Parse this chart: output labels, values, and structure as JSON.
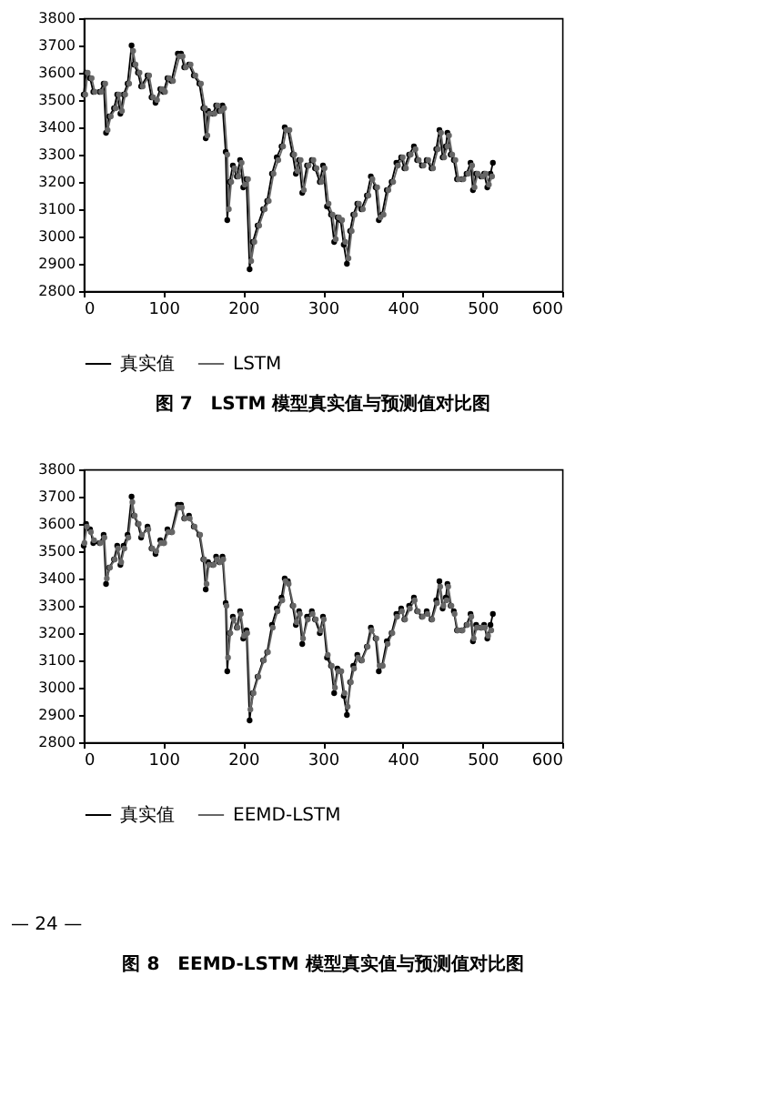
{
  "chart_data": [
    {
      "type": "line",
      "title": "图 7　LSTM 模型真实值与预测值对比图",
      "xlim": [
        0,
        600
      ],
      "ylim": [
        2800,
        3800
      ],
      "xticks": [
        0,
        100,
        200,
        300,
        400,
        500,
        600
      ],
      "yticks": [
        2800,
        2900,
        3000,
        3100,
        3200,
        3300,
        3400,
        3500,
        3600,
        3700,
        3800
      ],
      "grid": false,
      "legend": "bottom",
      "marker": "circle",
      "line_style": "solid",
      "series": [
        {
          "name": "真实值",
          "color": "#000000",
          "x": [
            0,
            3,
            8,
            12,
            20,
            25,
            28,
            32,
            38,
            42,
            46,
            50,
            55,
            60,
            63,
            68,
            72,
            80,
            85,
            90,
            96,
            100,
            105,
            110,
            118,
            122,
            126,
            132,
            138,
            145,
            150,
            153,
            156,
            162,
            166,
            170,
            174,
            178,
            180,
            183,
            187,
            192,
            196,
            200,
            204,
            208,
            212,
            218,
            225,
            230,
            236,
            242,
            248,
            252,
            256,
            262,
            266,
            270,
            274,
            280,
            286,
            290,
            296,
            300,
            305,
            310,
            314,
            318,
            322,
            326,
            330,
            334,
            338,
            343,
            348,
            355,
            360,
            366,
            370,
            374,
            380,
            386,
            392,
            398,
            402,
            408,
            414,
            418,
            424,
            430,
            436,
            442,
            446,
            450,
            454,
            456,
            460,
            464,
            468,
            474,
            480,
            485,
            488,
            492,
            498,
            502,
            506,
            510,
            513
          ],
          "values": [
            3520,
            3600,
            3580,
            3530,
            3530,
            3560,
            3380,
            3440,
            3470,
            3520,
            3450,
            3520,
            3560,
            3700,
            3630,
            3600,
            3550,
            3590,
            3510,
            3490,
            3540,
            3530,
            3580,
            3570,
            3670,
            3670,
            3620,
            3630,
            3590,
            3560,
            3470,
            3360,
            3460,
            3450,
            3480,
            3460,
            3480,
            3310,
            3060,
            3200,
            3260,
            3220,
            3280,
            3180,
            3210,
            2880,
            2980,
            3040,
            3100,
            3130,
            3230,
            3290,
            3330,
            3400,
            3390,
            3300,
            3230,
            3280,
            3160,
            3260,
            3280,
            3250,
            3200,
            3260,
            3110,
            3080,
            2980,
            3070,
            3060,
            2970,
            2900,
            3020,
            3080,
            3120,
            3100,
            3150,
            3220,
            3180,
            3060,
            3080,
            3170,
            3200,
            3270,
            3290,
            3250,
            3300,
            3330,
            3280,
            3260,
            3280,
            3250,
            3320,
            3390,
            3290,
            3330,
            3380,
            3300,
            3280,
            3210,
            3210,
            3230,
            3270,
            3170,
            3230,
            3220,
            3230,
            3180,
            3230,
            3270
          ]
        },
        {
          "name": "LSTM",
          "color": "#666666",
          "x": [
            2,
            5,
            10,
            14,
            22,
            27,
            30,
            34,
            40,
            44,
            48,
            52,
            57,
            62,
            65,
            70,
            74,
            82,
            87,
            92,
            98,
            102,
            107,
            112,
            120,
            124,
            128,
            134,
            140,
            147,
            152,
            155,
            158,
            164,
            168,
            172,
            176,
            180,
            182,
            185,
            189,
            194,
            198,
            202,
            206,
            210,
            214,
            220,
            227,
            232,
            238,
            244,
            250,
            254,
            258,
            264,
            268,
            272,
            276,
            282,
            288,
            292,
            298,
            302,
            307,
            312,
            316,
            320,
            324,
            328,
            332,
            336,
            340,
            345,
            350,
            357,
            362,
            368,
            372,
            376,
            382,
            388,
            394,
            400,
            404,
            410,
            416,
            420,
            426,
            432,
            438,
            444,
            448,
            452,
            456,
            458,
            462,
            466,
            470,
            476,
            482,
            487,
            490,
            494,
            500,
            504,
            508,
            512
          ],
          "values": [
            3520,
            3600,
            3580,
            3530,
            3530,
            3560,
            3390,
            3440,
            3470,
            3520,
            3460,
            3520,
            3560,
            3680,
            3630,
            3600,
            3550,
            3590,
            3510,
            3500,
            3540,
            3530,
            3580,
            3570,
            3660,
            3660,
            3620,
            3630,
            3590,
            3560,
            3470,
            3370,
            3450,
            3450,
            3480,
            3460,
            3470,
            3300,
            3100,
            3200,
            3250,
            3220,
            3270,
            3190,
            3210,
            2910,
            2980,
            3040,
            3100,
            3130,
            3230,
            3280,
            3330,
            3390,
            3390,
            3300,
            3240,
            3280,
            3170,
            3260,
            3280,
            3250,
            3200,
            3250,
            3120,
            3080,
            2990,
            3070,
            3060,
            2980,
            2920,
            3020,
            3080,
            3120,
            3100,
            3150,
            3210,
            3180,
            3070,
            3080,
            3170,
            3200,
            3260,
            3290,
            3250,
            3300,
            3320,
            3280,
            3260,
            3280,
            3250,
            3320,
            3380,
            3290,
            3330,
            3370,
            3300,
            3280,
            3210,
            3210,
            3230,
            3260,
            3180,
            3230,
            3220,
            3230,
            3190,
            3220
          ]
        }
      ]
    },
    {
      "type": "line",
      "title": "图 8　EEMD-LSTM 模型真实值与预测值对比图",
      "annotations": [
        "— 24 —"
      ],
      "xlim": [
        0,
        600
      ],
      "ylim": [
        2800,
        3800
      ],
      "xticks": [
        0,
        100,
        200,
        300,
        400,
        500,
        600
      ],
      "yticks": [
        2800,
        2900,
        3000,
        3100,
        3200,
        3300,
        3400,
        3500,
        3600,
        3700,
        3800
      ],
      "grid": false,
      "legend": "bottom",
      "marker": "circle",
      "line_style": "solid",
      "series": [
        {
          "name": "真实值",
          "color": "#000000",
          "x": [
            0,
            3,
            8,
            12,
            20,
            25,
            28,
            32,
            38,
            42,
            46,
            50,
            55,
            60,
            63,
            68,
            72,
            80,
            85,
            90,
            96,
            100,
            105,
            110,
            118,
            122,
            126,
            132,
            138,
            145,
            150,
            153,
            156,
            162,
            166,
            170,
            174,
            178,
            180,
            183,
            187,
            192,
            196,
            200,
            204,
            208,
            212,
            218,
            225,
            230,
            236,
            242,
            248,
            252,
            256,
            262,
            266,
            270,
            274,
            280,
            286,
            290,
            296,
            300,
            305,
            310,
            314,
            318,
            322,
            326,
            330,
            334,
            338,
            343,
            348,
            355,
            360,
            366,
            370,
            374,
            380,
            386,
            392,
            398,
            402,
            408,
            414,
            418,
            424,
            430,
            436,
            442,
            446,
            450,
            454,
            456,
            460,
            464,
            468,
            474,
            480,
            485,
            488,
            492,
            498,
            502,
            506,
            510,
            513
          ],
          "values": [
            3520,
            3600,
            3580,
            3530,
            3530,
            3560,
            3380,
            3440,
            3470,
            3520,
            3450,
            3520,
            3560,
            3700,
            3630,
            3600,
            3550,
            3590,
            3510,
            3490,
            3540,
            3530,
            3580,
            3570,
            3670,
            3670,
            3620,
            3630,
            3590,
            3560,
            3470,
            3360,
            3460,
            3450,
            3480,
            3460,
            3480,
            3310,
            3060,
            3200,
            3260,
            3220,
            3280,
            3180,
            3210,
            2880,
            2980,
            3040,
            3100,
            3130,
            3230,
            3290,
            3330,
            3400,
            3390,
            3300,
            3230,
            3280,
            3160,
            3260,
            3280,
            3250,
            3200,
            3260,
            3110,
            3080,
            2980,
            3070,
            3060,
            2970,
            2900,
            3020,
            3080,
            3120,
            3100,
            3150,
            3220,
            3180,
            3060,
            3080,
            3170,
            3200,
            3270,
            3290,
            3250,
            3300,
            3330,
            3280,
            3260,
            3280,
            3250,
            3320,
            3390,
            3290,
            3330,
            3380,
            3300,
            3280,
            3210,
            3210,
            3230,
            3270,
            3170,
            3230,
            3220,
            3230,
            3180,
            3230,
            3270
          ]
        },
        {
          "name": "EEMD-LSTM",
          "color": "#666666",
          "x": [
            1,
            4,
            9,
            13,
            21,
            26,
            29,
            33,
            39,
            43,
            47,
            51,
            56,
            61,
            64,
            69,
            73,
            81,
            86,
            91,
            97,
            101,
            106,
            111,
            119,
            123,
            127,
            133,
            139,
            146,
            151,
            154,
            157,
            163,
            167,
            171,
            175,
            179,
            181,
            184,
            188,
            193,
            197,
            201,
            205,
            209,
            213,
            219,
            226,
            231,
            237,
            243,
            249,
            253,
            257,
            263,
            267,
            271,
            275,
            281,
            287,
            291,
            297,
            301,
            306,
            311,
            315,
            319,
            323,
            327,
            331,
            335,
            339,
            344,
            349,
            356,
            361,
            367,
            371,
            375,
            381,
            387,
            393,
            399,
            403,
            409,
            415,
            419,
            425,
            431,
            437,
            443,
            447,
            451,
            455,
            457,
            461,
            465,
            469,
            475,
            481,
            486,
            489,
            493,
            499,
            503,
            507,
            511
          ],
          "values": [
            3530,
            3590,
            3570,
            3540,
            3530,
            3550,
            3400,
            3440,
            3470,
            3510,
            3460,
            3510,
            3550,
            3680,
            3630,
            3600,
            3560,
            3580,
            3510,
            3500,
            3530,
            3530,
            3570,
            3570,
            3660,
            3660,
            3620,
            3620,
            3590,
            3560,
            3470,
            3380,
            3450,
            3450,
            3470,
            3460,
            3470,
            3300,
            3110,
            3200,
            3250,
            3220,
            3270,
            3190,
            3200,
            2920,
            2980,
            3040,
            3100,
            3130,
            3220,
            3280,
            3320,
            3390,
            3380,
            3300,
            3240,
            3270,
            3180,
            3250,
            3270,
            3250,
            3210,
            3250,
            3120,
            3080,
            3000,
            3060,
            3060,
            2980,
            2930,
            3020,
            3070,
            3110,
            3100,
            3150,
            3210,
            3180,
            3080,
            3080,
            3160,
            3200,
            3260,
            3280,
            3250,
            3290,
            3320,
            3280,
            3260,
            3270,
            3250,
            3310,
            3370,
            3300,
            3320,
            3370,
            3300,
            3270,
            3210,
            3210,
            3230,
            3260,
            3180,
            3220,
            3220,
            3220,
            3190,
            3210
          ]
        }
      ]
    }
  ]
}
